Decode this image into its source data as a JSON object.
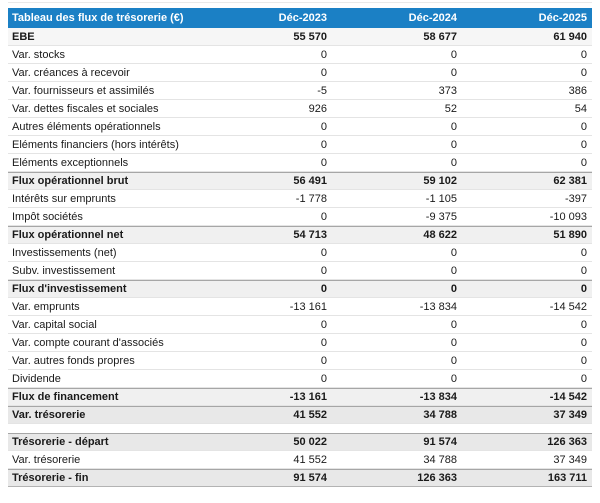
{
  "colors": {
    "header_bg": "#1b80c5",
    "header_text": "#ffffff",
    "row_text": "#1a1a1a",
    "lead_row_bg": "#f6f6f6",
    "subtotal_row_bg": "#f0f0f0",
    "total_row_bg": "#e8e8e8",
    "row_border": "#e4e4e4",
    "strong_border": "#a6a6a6"
  },
  "table": {
    "title": "Tableau des flux de trésorerie (€)",
    "columns": [
      "Déc-2023",
      "Déc-2024",
      "Déc-2025"
    ],
    "rows": [
      {
        "label": "EBE",
        "values": [
          "55 570",
          "58 677",
          "61 940"
        ],
        "style": "lead"
      },
      {
        "label": "Var. stocks",
        "values": [
          "0",
          "0",
          "0"
        ],
        "style": "normal"
      },
      {
        "label": "Var. créances à recevoir",
        "values": [
          "0",
          "0",
          "0"
        ],
        "style": "normal"
      },
      {
        "label": "Var. fournisseurs et assimilés",
        "values": [
          "-5",
          "373",
          "386"
        ],
        "style": "normal"
      },
      {
        "label": "Var. dettes fiscales et sociales",
        "values": [
          "926",
          "52",
          "54"
        ],
        "style": "normal"
      },
      {
        "label": "Autres éléments opérationnels",
        "values": [
          "0",
          "0",
          "0"
        ],
        "style": "normal"
      },
      {
        "label": "Eléments financiers (hors intérêts)",
        "values": [
          "0",
          "0",
          "0"
        ],
        "style": "normal"
      },
      {
        "label": "Eléments exceptionnels",
        "values": [
          "0",
          "0",
          "0"
        ],
        "style": "normal"
      },
      {
        "label": "Flux opérationnel brut",
        "values": [
          "56 491",
          "59 102",
          "62 381"
        ],
        "style": "subtotal"
      },
      {
        "label": "Intérêts sur emprunts",
        "values": [
          "-1 778",
          "-1 105",
          "-397"
        ],
        "style": "normal"
      },
      {
        "label": "Impôt sociétés",
        "values": [
          "0",
          "-9 375",
          "-10 093"
        ],
        "style": "normal"
      },
      {
        "label": "Flux opérationnel net",
        "values": [
          "54 713",
          "48 622",
          "51 890"
        ],
        "style": "subtotal"
      },
      {
        "label": "Investissements (net)",
        "values": [
          "0",
          "0",
          "0"
        ],
        "style": "normal"
      },
      {
        "label": "Subv. investissement",
        "values": [
          "0",
          "0",
          "0"
        ],
        "style": "normal"
      },
      {
        "label": "Flux d'investissement",
        "values": [
          "0",
          "0",
          "0"
        ],
        "style": "subtotal"
      },
      {
        "label": "Var. emprunts",
        "values": [
          "-13 161",
          "-13 834",
          "-14 542"
        ],
        "style": "normal"
      },
      {
        "label": "Var. capital social",
        "values": [
          "0",
          "0",
          "0"
        ],
        "style": "normal"
      },
      {
        "label": "Var. compte courant d'associés",
        "values": [
          "0",
          "0",
          "0"
        ],
        "style": "normal"
      },
      {
        "label": "Var. autres fonds propres",
        "values": [
          "0",
          "0",
          "0"
        ],
        "style": "normal"
      },
      {
        "label": "Dividende",
        "values": [
          "0",
          "0",
          "0"
        ],
        "style": "normal"
      },
      {
        "label": "Flux de financement",
        "values": [
          "-13 161",
          "-13 834",
          "-14 542"
        ],
        "style": "subtotal"
      },
      {
        "label": "Var. trésorerie",
        "values": [
          "41 552",
          "34 788",
          "37 349"
        ],
        "style": "total"
      },
      {
        "label": "Trésorerie - départ",
        "values": [
          "50 022",
          "91 574",
          "126 363"
        ],
        "style": "total",
        "section_break_before": true
      },
      {
        "label": "Var. trésorerie",
        "values": [
          "41 552",
          "34 788",
          "37 349"
        ],
        "style": "normal"
      },
      {
        "label": "Trésorerie - fin",
        "values": [
          "91 574",
          "126 363",
          "163 711"
        ],
        "style": "total",
        "last": true
      }
    ]
  }
}
